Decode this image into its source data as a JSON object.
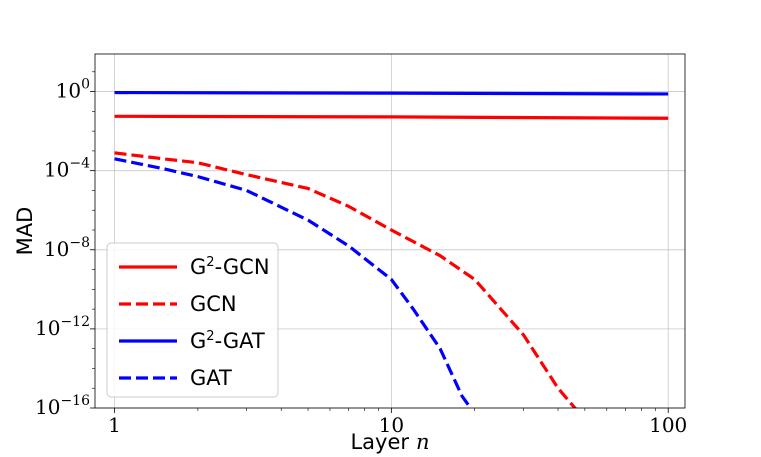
{
  "chart_data": {
    "type": "line",
    "xscale": "log",
    "yscale": "log",
    "xlim": [
      0.85,
      115
    ],
    "ylim_exp": [
      -16,
      1.9
    ],
    "xlabel": "Layer",
    "xlabel_var": "n",
    "ylabel": "MAD",
    "grid": true,
    "legend_position": "lower-left",
    "x_ticks": [
      {
        "value": 1,
        "label": "1"
      },
      {
        "value": 10,
        "label": "10"
      },
      {
        "value": 100,
        "label": "100"
      }
    ],
    "y_ticks": [
      {
        "exp": 0,
        "base": "10",
        "exponent": "0"
      },
      {
        "exp": -4,
        "base": "10",
        "exponent": "−4"
      },
      {
        "exp": -8,
        "base": "10",
        "exponent": "−8"
      },
      {
        "exp": -12,
        "base": "10",
        "exponent": "−12"
      },
      {
        "exp": -16,
        "base": "10",
        "exponent": "−16"
      }
    ],
    "series": [
      {
        "name": "G2-GCN",
        "legend_base": "G",
        "legend_sup": "2",
        "legend_rest": "-GCN",
        "color": "#ff0000",
        "dash": "solid",
        "points": [
          [
            1,
            -1.25
          ],
          [
            10,
            -1.28
          ],
          [
            100,
            -1.35
          ]
        ]
      },
      {
        "name": "GCN",
        "legend_base": "GCN",
        "legend_sup": "",
        "legend_rest": "",
        "color": "#ff0000",
        "dash": "dashed",
        "points": [
          [
            1,
            -3.1
          ],
          [
            1.5,
            -3.4
          ],
          [
            2,
            -3.6
          ],
          [
            3,
            -4.2
          ],
          [
            5,
            -4.9
          ],
          [
            7,
            -5.8
          ],
          [
            10,
            -7.0
          ],
          [
            15,
            -8.3
          ],
          [
            20,
            -9.5
          ],
          [
            30,
            -12.3
          ],
          [
            40,
            -15.0
          ],
          [
            48,
            -16.3
          ]
        ]
      },
      {
        "name": "G2-GAT",
        "legend_base": "G",
        "legend_sup": "2",
        "legend_rest": "-GAT",
        "color": "#0000ff",
        "dash": "solid",
        "points": [
          [
            1,
            -0.05
          ],
          [
            10,
            -0.08
          ],
          [
            100,
            -0.12
          ]
        ]
      },
      {
        "name": "GAT",
        "legend_base": "GAT",
        "legend_sup": "",
        "legend_rest": "",
        "color": "#0000ff",
        "dash": "dashed",
        "points": [
          [
            1,
            -3.4
          ],
          [
            1.5,
            -3.9
          ],
          [
            2,
            -4.3
          ],
          [
            3,
            -5.0
          ],
          [
            5,
            -6.5
          ],
          [
            7,
            -7.8
          ],
          [
            10,
            -9.5
          ],
          [
            12,
            -11.0
          ],
          [
            15,
            -13.0
          ],
          [
            18,
            -15.4
          ],
          [
            20,
            -16.3
          ]
        ]
      }
    ]
  }
}
